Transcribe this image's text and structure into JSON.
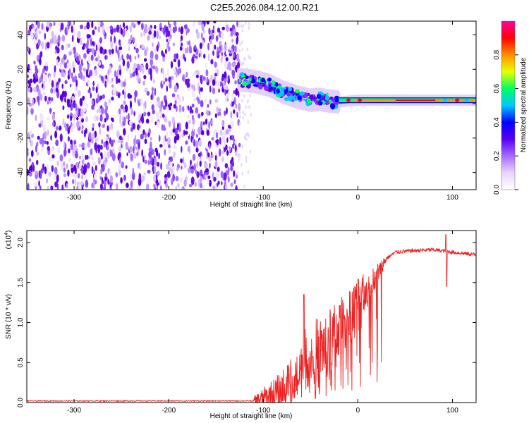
{
  "title": "C2E5.2026.084.12.00.R21",
  "chart_data": [
    {
      "type": "heatmap",
      "name": "spectrogram",
      "xlabel": "Height of straight line (km)",
      "ylabel": "Frequency (Hz)",
      "xlim": [
        -350,
        125
      ],
      "ylim": [
        -50,
        48
      ],
      "x_ticks": [
        -300,
        -200,
        -100,
        0,
        100
      ],
      "y_ticks": [
        -40,
        -20,
        0,
        20,
        40
      ],
      "noise_region_x": [
        -350,
        -125
      ],
      "signal_track": {
        "x": [
          -125,
          -110,
          -95,
          -80,
          -65,
          -50,
          -40,
          -30,
          -20,
          -10,
          0,
          20,
          50,
          80,
          100,
          125
        ],
        "y": [
          14,
          13,
          11,
          7,
          4,
          2,
          2.5,
          1.5,
          1,
          1.5,
          2,
          2,
          2,
          2,
          2,
          2
        ]
      },
      "colorbar": {
        "label": "Normalized spectral amplitude",
        "range": [
          0,
          1
        ],
        "ticks": [
          "0.0",
          "0.2",
          "0.4",
          "0.6",
          "0.8"
        ],
        "colors": [
          "#ffffff",
          "#e9d4ff",
          "#a56bff",
          "#5a00f0",
          "#0000ff",
          "#00c8ff",
          "#00ff60",
          "#e8ff00",
          "#ff9000",
          "#ff0000",
          "#ff00a0"
        ]
      }
    },
    {
      "type": "line",
      "name": "snr",
      "xlabel": "Height of straight line (km)",
      "ylabel": "SNR (10 * v/v)",
      "y_multiplier": "(x10",
      "y_multiplier_exp": "4",
      "xlim": [
        -350,
        125
      ],
      "ylim": [
        0,
        2.15
      ],
      "x_ticks": [
        -300,
        -200,
        -100,
        0,
        100
      ],
      "y_ticks": [
        "0.0",
        "0.5",
        "1.0",
        "1.5",
        "2.0"
      ],
      "color": "#ee2020",
      "envelope": {
        "x": [
          -350,
          -110,
          -100,
          -80,
          -65,
          -55,
          -45,
          -35,
          -25,
          -15,
          -5,
          5,
          20,
          30,
          40,
          60,
          80,
          100,
          115,
          125
        ],
        "y": [
          0.02,
          0.02,
          0.05,
          0.12,
          0.3,
          0.55,
          0.65,
          0.7,
          0.85,
          1.0,
          1.2,
          1.35,
          1.6,
          1.8,
          1.88,
          1.9,
          1.91,
          1.88,
          1.86,
          1.85
        ]
      },
      "spikes": [
        {
          "x": -57,
          "y": 1.35
        },
        {
          "x": -45,
          "y": 0.05
        },
        {
          "x": 93,
          "y": 2.1
        },
        {
          "x": 94,
          "y": 1.45
        }
      ]
    }
  ]
}
